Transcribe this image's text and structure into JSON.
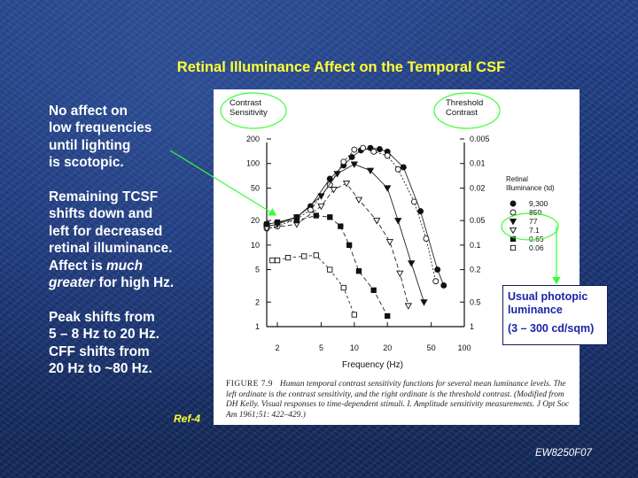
{
  "slide": {
    "title": "Retinal Illuminance Affect on the Temporal CSF",
    "paragraphs": [
      {
        "lines": [
          [
            {
              "t": "No affect on"
            }
          ],
          [
            {
              "t": "low frequencies"
            }
          ],
          [
            {
              "t": "until lighting"
            }
          ],
          [
            {
              "t": "is scotopic."
            }
          ]
        ]
      },
      {
        "lines": [
          [
            {
              "t": "Remaining TCSF"
            }
          ],
          [
            {
              "t": "shifts down and"
            }
          ],
          [
            {
              "t": "left for decreased"
            }
          ],
          [
            {
              "t": "retinal illuminance."
            }
          ],
          [
            {
              "t": "Affect is "
            },
            {
              "t": "much",
              "i": true
            }
          ],
          [
            {
              "t": "greater",
              "i": true
            },
            {
              "t": " for high Hz."
            }
          ]
        ]
      },
      {
        "lines": [
          [
            {
              "t": "Peak shifts from"
            }
          ],
          [
            {
              "t": "5 – 8 Hz to 20 Hz."
            }
          ],
          [
            {
              "t": "CFF shifts from"
            }
          ],
          [
            {
              "t": "20 Hz to ~80 Hz."
            }
          ]
        ]
      }
    ],
    "ref": "Ref-4",
    "code": "EW8250F07",
    "photopic_box": {
      "line1": "Usual photopic",
      "line2": "luminance",
      "line3": "(3 – 300 cd/sqm)"
    },
    "colors": {
      "title": "#ffff33",
      "highlight_ellipse": "#33ff33",
      "arrow": "#33ff33",
      "box_text": "#1a24a8"
    }
  },
  "figure": {
    "label": "FIGURE 7.9",
    "caption": "Human temporal contrast sensitivity functions for several mean luminance levels. The left ordinate is the contrast sensitivity, and the right ordinate is the threshold contrast. (Modified from DH Kelly. Visual responses to time-dependent stimuli. I. Amplitude sensitivity measurements. J Opt Soc Am 1961;51: 422–429.)"
  },
  "chart_data": {
    "type": "line",
    "xlabel": "Frequency (Hz)",
    "ylabel_left_lines": [
      "Contrast",
      "Sensitivity"
    ],
    "ylabel_right_lines": [
      "Threshold",
      "Contrast"
    ],
    "x_scale": "log",
    "y_scale": "log",
    "xlim": [
      1.6,
      100
    ],
    "ylim": [
      1,
      200
    ],
    "x_ticks": [
      2,
      5,
      10,
      20,
      50,
      100
    ],
    "x_tick_labels": [
      "2",
      "5",
      "10",
      "20",
      "50",
      "100"
    ],
    "y_ticks_left": [
      1,
      2,
      5,
      10,
      20,
      50,
      100,
      200
    ],
    "y_tick_labels_left": [
      "1",
      "2",
      "5",
      "10",
      "20",
      "50",
      "100",
      "200"
    ],
    "y_ticks_right": [
      1,
      0.5,
      0.2,
      0.1,
      0.05,
      0.02,
      0.01,
      0.005
    ],
    "y_tick_labels_right": [
      "1",
      "0.5",
      "0.2",
      "0.1",
      "0.05",
      "0.02",
      "0.01",
      "0.005"
    ],
    "legend_title_lines": [
      "Retinal",
      "Illuminance (td)"
    ],
    "legend_position": "right",
    "series": [
      {
        "name": "9,300",
        "marker": "circle-filled",
        "x": [
          1.6,
          2.0,
          3.0,
          4.0,
          6.0,
          8.0,
          9.5,
          11.5,
          14.0,
          17.0,
          20.0,
          28.0,
          40.0,
          57.0,
          65.0
        ],
        "y": [
          18,
          19,
          22,
          30,
          65,
          95,
          120,
          145,
          155,
          150,
          140,
          90,
          26,
          5,
          3.2
        ]
      },
      {
        "name": "850",
        "marker": "circle-open",
        "x": [
          1.6,
          2.0,
          3.0,
          4.0,
          6.0,
          8.0,
          10.0,
          12.0,
          15.0,
          20.0,
          25.0,
          35.0,
          45.0,
          55.0
        ],
        "y": [
          16,
          17,
          21,
          27,
          55,
          105,
          148,
          155,
          140,
          125,
          85,
          34,
          12,
          3.6
        ]
      },
      {
        "name": "77",
        "marker": "triangle-down-filled",
        "x": [
          1.6,
          2.0,
          3.0,
          5.0,
          7.0,
          10.0,
          14.0,
          20.0,
          25.0,
          33.0,
          43.0
        ],
        "y": [
          17,
          18,
          22,
          40,
          75,
          98,
          82,
          50,
          20,
          6,
          2
        ]
      },
      {
        "name": "7.1",
        "marker": "triangle-down-open",
        "x": [
          1.6,
          3.0,
          5.0,
          6.5,
          8.5,
          11.0,
          16.0,
          21.0,
          26.0,
          31.0
        ],
        "y": [
          16,
          18,
          30,
          48,
          57,
          36,
          20,
          11,
          4.5,
          1.8
        ]
      },
      {
        "name": "0.65",
        "marker": "square-filled",
        "x": [
          1.6,
          2.0,
          3.0,
          4.5,
          6.0,
          7.5,
          9.0,
          11.0,
          15.0,
          20.0
        ],
        "y": [
          18,
          19,
          20,
          23,
          22,
          17,
          10,
          4.8,
          2.8,
          1.35
        ]
      },
      {
        "name": "0.06",
        "marker": "square-open",
        "x": [
          1.8,
          2.0,
          2.5,
          3.5,
          4.5,
          6.0,
          8.0,
          10.0
        ],
        "y": [
          6.5,
          6.5,
          7.0,
          7.3,
          7.5,
          5.0,
          3.0,
          1.4
        ]
      }
    ]
  }
}
